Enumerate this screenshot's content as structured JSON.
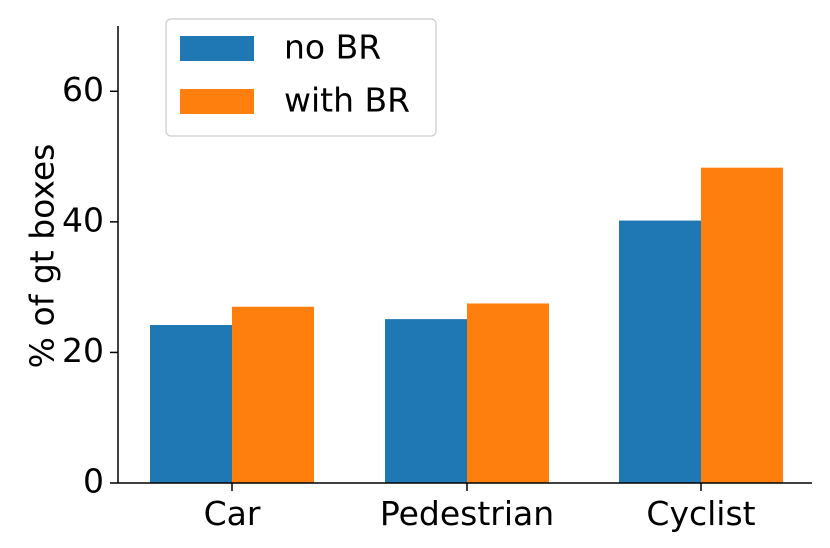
{
  "chart_data": {
    "type": "bar",
    "categories": [
      "Car",
      "Pedestrian",
      "Cyclist"
    ],
    "series": [
      {
        "name": "no BR",
        "color": "#1f77b4",
        "values": [
          24.2,
          25.1,
          40.2
        ]
      },
      {
        "name": "with BR",
        "color": "#ff7f0e",
        "values": [
          27.0,
          27.5,
          48.3
        ]
      }
    ],
    "ylabel": "% of gt boxes",
    "ylim": [
      0,
      70
    ],
    "yticks": [
      0,
      20,
      40,
      60
    ],
    "grid": false,
    "legend_position": "top-left"
  }
}
